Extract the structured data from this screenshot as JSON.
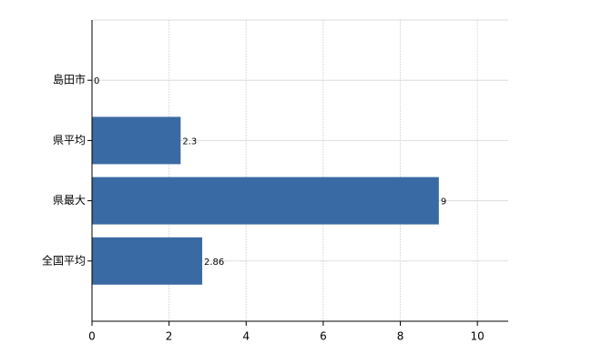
{
  "chart_data": {
    "type": "bar",
    "orientation": "horizontal",
    "categories": [
      "島田市",
      "県平均",
      "県最大",
      "全国平均"
    ],
    "values": [
      0,
      2.3,
      9,
      2.86
    ],
    "color": "#3a6aa3",
    "xlim": [
      0,
      10.8
    ],
    "xticks": [
      0,
      2,
      4,
      6,
      8,
      10
    ],
    "grid": true
  }
}
